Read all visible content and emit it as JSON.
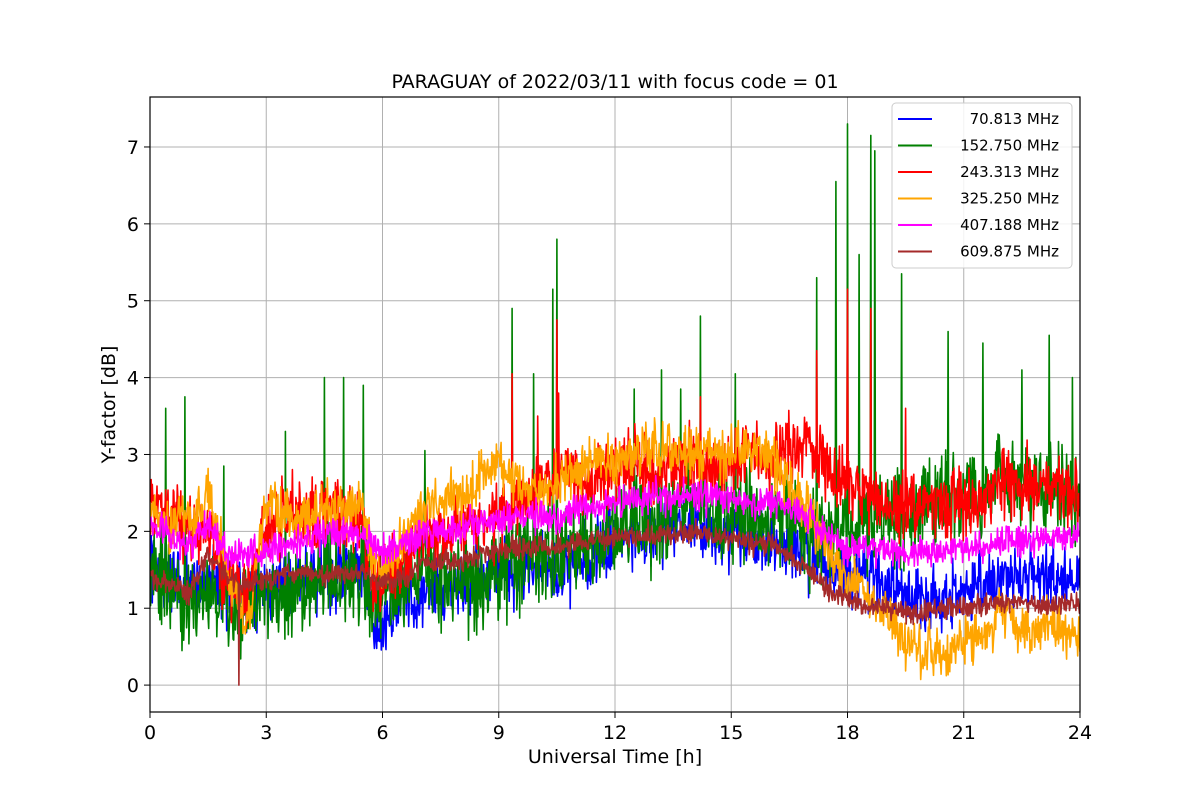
{
  "chart_data": {
    "type": "line",
    "title": "PARAGUAY of 2022/03/11 with focus code = 01",
    "xlabel": "Universal Time [h]",
    "ylabel": "Y-factor [dB]",
    "xlim": [
      0,
      24
    ],
    "ylim": [
      -0.35,
      7.65
    ],
    "xticks": [
      "0",
      "3",
      "6",
      "9",
      "12",
      "15",
      "18",
      "21",
      "24"
    ],
    "yticks": [
      "0",
      "1",
      "2",
      "3",
      "4",
      "5",
      "6",
      "7"
    ],
    "grid": true,
    "legend_position": "top-right",
    "series": [
      {
        "name": "70.813 MHz",
        "color": "#0000ff",
        "noise": 0.22,
        "x": [
          0,
          0.5,
          1,
          1.5,
          2,
          2.5,
          3,
          3.5,
          4,
          4.5,
          5,
          5.5,
          5.75,
          6,
          6.5,
          7,
          7.5,
          8,
          8.5,
          9,
          9.5,
          10,
          10.5,
          11,
          11.5,
          12,
          12.5,
          13,
          13.5,
          14,
          14.5,
          15,
          15.5,
          16,
          16.5,
          17,
          17.5,
          18,
          18.5,
          19,
          19.5,
          20,
          20.5,
          21,
          21.5,
          22,
          22.5,
          23,
          23.5,
          24
        ],
        "y": [
          1.5,
          1.4,
          1.2,
          1.4,
          1.3,
          1.1,
          1.2,
          1.3,
          1.3,
          1.4,
          1.5,
          1.5,
          0.9,
          0.8,
          1.1,
          1.2,
          1.3,
          1.3,
          1.4,
          1.5,
          1.5,
          1.6,
          1.5,
          1.6,
          1.7,
          1.9,
          1.9,
          1.9,
          2.0,
          2.1,
          2.0,
          2.0,
          1.9,
          1.9,
          1.8,
          1.7,
          1.6,
          1.5,
          1.4,
          1.3,
          1.2,
          1.1,
          1.1,
          1.2,
          1.3,
          1.4,
          1.4,
          1.4,
          1.4,
          1.3
        ]
      },
      {
        "name": "152.750 MHz",
        "color": "#008000",
        "noise": 0.3,
        "x": [
          0,
          0.5,
          1,
          1.5,
          2,
          2.5,
          3,
          3.5,
          4,
          4.5,
          5,
          5.5,
          5.75,
          6,
          6.5,
          7,
          7.5,
          8,
          8.5,
          9,
          9.5,
          10,
          10.5,
          11,
          11.5,
          12,
          12.5,
          13,
          13.5,
          14,
          14.5,
          15,
          15.5,
          16,
          16.5,
          17,
          17.5,
          18,
          18.5,
          19,
          19.5,
          20,
          20.5,
          21,
          21.5,
          22,
          22.5,
          23,
          23.5,
          24
        ],
        "y": [
          1.5,
          1.3,
          1.0,
          1.2,
          1.0,
          1.0,
          1.1,
          1.1,
          1.2,
          1.3,
          1.4,
          1.4,
          1.1,
          1.2,
          1.3,
          1.4,
          1.4,
          1.3,
          1.4,
          1.5,
          1.6,
          1.7,
          1.7,
          1.8,
          1.8,
          2.0,
          2.1,
          2.1,
          2.2,
          2.3,
          2.2,
          2.2,
          2.2,
          2.1,
          2.1,
          2.0,
          2.0,
          2.1,
          2.1,
          2.2,
          2.2,
          2.3,
          2.4,
          2.5,
          2.6,
          2.7,
          2.6,
          2.6,
          2.5,
          2.4
        ],
        "spikes": [
          [
            0.4,
            3.6
          ],
          [
            0.9,
            3.75
          ],
          [
            1.9,
            2.85
          ],
          [
            3.5,
            3.3
          ],
          [
            4.5,
            4.0
          ],
          [
            5.0,
            4.0
          ],
          [
            5.5,
            3.9
          ],
          [
            7.1,
            3.05
          ],
          [
            9.35,
            4.9
          ],
          [
            9.9,
            4.05
          ],
          [
            10.4,
            5.15
          ],
          [
            10.5,
            5.8
          ],
          [
            12.5,
            3.85
          ],
          [
            13.2,
            4.1
          ],
          [
            13.7,
            3.85
          ],
          [
            14.2,
            4.8
          ],
          [
            15.1,
            4.05
          ],
          [
            17.2,
            5.3
          ],
          [
            17.7,
            6.55
          ],
          [
            18.0,
            7.3
          ],
          [
            18.3,
            5.6
          ],
          [
            18.6,
            7.15
          ],
          [
            18.7,
            6.95
          ],
          [
            19.4,
            5.35
          ],
          [
            20.6,
            4.6
          ],
          [
            21.5,
            4.45
          ],
          [
            22.5,
            4.1
          ],
          [
            23.2,
            4.55
          ],
          [
            23.8,
            4.0
          ]
        ]
      },
      {
        "name": "243.313 MHz",
        "color": "#ff0000",
        "noise": 0.22,
        "x": [
          0,
          0.5,
          1,
          1.5,
          2,
          2.5,
          3,
          3.5,
          4,
          4.5,
          5,
          5.5,
          5.75,
          6,
          6.5,
          7,
          7.5,
          8,
          8.5,
          9,
          9.5,
          10,
          10.5,
          11,
          11.5,
          12,
          12.5,
          13,
          13.5,
          14,
          14.5,
          15,
          15.5,
          16,
          16.5,
          17,
          17.5,
          18,
          18.5,
          19,
          19.5,
          20,
          20.5,
          21,
          21.5,
          22,
          22.5,
          23,
          23.5,
          24
        ],
        "y": [
          2.3,
          2.3,
          2.0,
          2.0,
          1.3,
          1.2,
          2.0,
          2.2,
          2.2,
          2.2,
          2.2,
          2.2,
          1.4,
          1.4,
          1.6,
          1.9,
          2.0,
          2.1,
          2.1,
          2.2,
          2.4,
          2.5,
          2.6,
          2.7,
          2.7,
          2.8,
          2.9,
          2.8,
          2.8,
          2.9,
          2.8,
          2.9,
          3.0,
          3.0,
          3.1,
          3.1,
          2.8,
          2.7,
          2.5,
          2.4,
          2.3,
          2.3,
          2.3,
          2.4,
          2.4,
          2.7,
          2.6,
          2.6,
          2.6,
          2.5
        ],
        "spikes": [
          [
            9.35,
            4.05
          ],
          [
            10.0,
            3.5
          ],
          [
            10.5,
            4.75
          ],
          [
            10.55,
            3.8
          ],
          [
            14.2,
            3.75
          ],
          [
            17.2,
            4.35
          ],
          [
            18.0,
            5.15
          ],
          [
            18.6,
            4.9
          ],
          [
            19.5,
            3.6
          ]
        ]
      },
      {
        "name": "325.250 MHz",
        "color": "#ffa500",
        "noise": 0.16,
        "x": [
          0,
          0.5,
          1,
          1.5,
          2,
          2.5,
          3,
          3.5,
          4,
          4.5,
          5,
          5.5,
          5.75,
          6,
          6.5,
          7,
          7.5,
          8,
          8.5,
          9,
          9.5,
          10,
          10.5,
          11,
          11.5,
          12,
          12.5,
          13,
          13.5,
          14,
          14.5,
          15,
          15.5,
          16,
          16.5,
          17,
          17.5,
          18,
          18.5,
          19,
          19.5,
          20,
          20.5,
          21,
          21.5,
          22,
          22.5,
          23,
          23.5,
          24
        ],
        "y": [
          2.3,
          2.1,
          2.1,
          2.5,
          1.5,
          0.7,
          2.4,
          2.2,
          2.2,
          2.3,
          2.3,
          2.3,
          1.6,
          1.5,
          1.8,
          2.3,
          2.5,
          2.4,
          2.7,
          2.9,
          2.6,
          2.5,
          2.6,
          2.8,
          2.9,
          2.9,
          3.0,
          3.1,
          3.0,
          3.0,
          3.0,
          3.0,
          3.1,
          3.0,
          2.6,
          2.2,
          1.7,
          1.4,
          1.2,
          0.9,
          0.55,
          0.45,
          0.4,
          0.55,
          0.7,
          0.9,
          0.75,
          0.75,
          0.7,
          0.7
        ]
      },
      {
        "name": "407.188 MHz",
        "color": "#ff00ff",
        "noise": 0.1,
        "x": [
          0,
          0.5,
          1,
          1.5,
          2,
          2.5,
          3,
          3.5,
          4,
          4.5,
          5,
          5.5,
          5.75,
          6,
          6.5,
          7,
          7.5,
          8,
          8.5,
          9,
          9.5,
          10,
          10.5,
          11,
          11.5,
          12,
          12.5,
          13,
          13.5,
          14,
          14.5,
          15,
          15.5,
          16,
          16.5,
          17,
          17.5,
          18,
          18.5,
          19,
          19.5,
          20,
          20.5,
          21,
          21.5,
          22,
          22.5,
          23,
          23.5,
          24
        ],
        "y": [
          2.05,
          1.95,
          1.8,
          2.1,
          1.7,
          1.7,
          1.75,
          1.85,
          1.9,
          1.95,
          2.0,
          1.95,
          1.85,
          1.75,
          1.8,
          1.95,
          2.05,
          2.05,
          2.1,
          2.15,
          2.2,
          2.2,
          2.15,
          2.3,
          2.3,
          2.35,
          2.4,
          2.45,
          2.4,
          2.5,
          2.45,
          2.4,
          2.35,
          2.35,
          2.3,
          2.2,
          1.9,
          1.8,
          1.75,
          1.75,
          1.75,
          1.75,
          1.75,
          1.8,
          1.8,
          1.85,
          1.85,
          1.9,
          1.9,
          1.9
        ]
      },
      {
        "name": "609.875 MHz",
        "color": "#a52a2a",
        "noise": 0.07,
        "x": [
          0,
          0.5,
          1,
          1.5,
          2,
          2.5,
          3,
          3.5,
          4,
          4.5,
          5,
          5.5,
          5.75,
          6,
          6.5,
          7,
          7.5,
          8,
          8.5,
          9,
          9.5,
          10,
          10.5,
          11,
          11.5,
          12,
          12.5,
          13,
          13.5,
          14,
          14.5,
          15,
          15.5,
          16,
          16.5,
          17,
          17.5,
          18,
          18.5,
          19,
          19.5,
          20,
          20.5,
          21,
          21.5,
          22,
          22.5,
          23,
          23.5,
          24
        ],
        "y": [
          1.4,
          1.3,
          1.2,
          1.7,
          1.4,
          1.3,
          1.4,
          1.45,
          1.45,
          1.4,
          1.45,
          1.45,
          1.35,
          1.3,
          1.4,
          1.55,
          1.6,
          1.6,
          1.7,
          1.75,
          1.8,
          1.8,
          1.8,
          1.85,
          1.9,
          1.95,
          1.95,
          1.95,
          1.95,
          2.0,
          1.95,
          1.9,
          1.85,
          1.85,
          1.7,
          1.5,
          1.25,
          1.1,
          1.05,
          1.0,
          0.95,
          0.95,
          1.0,
          1.0,
          1.05,
          1.1,
          1.05,
          1.05,
          1.05,
          1.05
        ],
        "spikes": [
          [
            2.3,
            0.0
          ]
        ]
      }
    ]
  }
}
